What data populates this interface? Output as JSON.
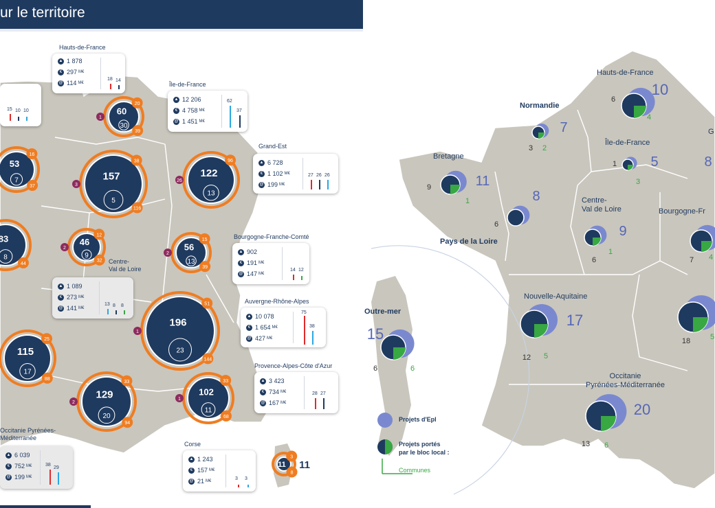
{
  "title": "ur le territoire",
  "left_map": {
    "bubbles": [
      {
        "id": "hdf",
        "total": "60",
        "inner": "30",
        "top_badge": "20",
        "left_badge": "1",
        "right_badge": "39"
      },
      {
        "id": "nor",
        "total": "53",
        "inner": "7",
        "top_badge": "16",
        "left_badge": "",
        "right_badge": "37"
      },
      {
        "id": "idf",
        "total": "157",
        "inner": "5",
        "top_badge": "38",
        "left_badge": "3",
        "right_badge": "116"
      },
      {
        "id": "ge",
        "total": "122",
        "inner": "13",
        "top_badge": "96",
        "left_badge": "26",
        "right_badge": ""
      },
      {
        "id": "pdl",
        "total": "83",
        "inner": "8",
        "top_badge": "",
        "left_badge": "",
        "right_badge": "44"
      },
      {
        "id": "cvl",
        "total": "46",
        "inner": "9",
        "top_badge": "12",
        "left_badge": "2",
        "right_badge": "32"
      },
      {
        "id": "bfc",
        "total": "56",
        "inner": "13",
        "top_badge": "15",
        "left_badge": "2",
        "right_badge": "39"
      },
      {
        "id": "ara",
        "total": "196",
        "inner": "23",
        "top_badge": "51",
        "left_badge": "1",
        "right_badge": "144"
      },
      {
        "id": "na",
        "total": "115",
        "inner": "17",
        "top_badge": "25",
        "left_badge": "",
        "right_badge": "88"
      },
      {
        "id": "occ",
        "total": "129",
        "inner": "20",
        "top_badge": "33",
        "left_badge": "2",
        "right_badge": "94"
      },
      {
        "id": "paca",
        "total": "102",
        "inner": "11",
        "top_badge": "33",
        "left_badge": "1",
        "right_badge": "68"
      },
      {
        "id": "cor",
        "total": "11",
        "inner": "",
        "top_badge": "3",
        "left_badge": "",
        "right_badge": "8"
      }
    ],
    "cards": [
      {
        "id": "card-hdf",
        "title": "Hauts-de-France",
        "v1": "1 878",
        "v2": "297",
        "v3": "114",
        "u": "M€",
        "bars": [
          "18",
          "14"
        ]
      },
      {
        "id": "card-idf",
        "title": "Île-de-France",
        "v1": "12 206",
        "v2": "4 758",
        "v3": "1 451",
        "u": "M€",
        "bars": [
          "62",
          "37"
        ]
      },
      {
        "id": "card-ge",
        "title": "Grand-Est",
        "v1": "6 728",
        "v2": "1 102",
        "v3": "199",
        "u": "M€",
        "bars": [
          "27",
          "26",
          "26"
        ]
      },
      {
        "id": "card-bfc",
        "title": "Bourgogne-Franche-Comté",
        "v1": "902",
        "v2": "191",
        "v3": "147",
        "u": "M€",
        "bars": [
          "14",
          "12"
        ]
      },
      {
        "id": "card-cvl",
        "title": "Centre-\nVal de Loire",
        "v1": "1 089",
        "v2": "273",
        "v3": "141",
        "u": "M€",
        "bars": [
          "13",
          "8",
          "8"
        ]
      },
      {
        "id": "card-ara",
        "title": "Auvergne-Rhône-Alpes",
        "v1": "10 078",
        "v2": "1 654",
        "v3": "427",
        "u": "M€",
        "bars": [
          "75",
          "38"
        ]
      },
      {
        "id": "card-paca",
        "title": "Provence-Alpes-Côte d'Azur",
        "v1": "3 423",
        "v2": "734",
        "v3": "167",
        "u": "M€",
        "bars": [
          "28",
          "27"
        ]
      },
      {
        "id": "card-occ",
        "title": "Occitanie Pyrénées-\nMéditerranée",
        "v1": "6 039",
        "v2": "752",
        "v3": "199",
        "u": "M€",
        "bars": [
          "38",
          "29"
        ]
      },
      {
        "id": "card-cor",
        "title": "Corse",
        "v1": "1 243",
        "v2": "157",
        "v3": "21",
        "u": "M€",
        "bars": [
          "3",
          "3"
        ]
      },
      {
        "id": "card-nor",
        "title": "",
        "v1": "",
        "v2": "",
        "v3": "",
        "u": "",
        "bars": [
          "15",
          "10",
          "10"
        ]
      }
    ]
  },
  "right_map": {
    "regions": [
      {
        "id": "hdf",
        "name": "Hauts-de-France",
        "epl": "10",
        "left": "6",
        "green": "4"
      },
      {
        "id": "nor",
        "name": "Normandie",
        "epl": "7",
        "left": "3",
        "green": "2"
      },
      {
        "id": "idf",
        "name": "Île-de-France",
        "epl": "5",
        "left": "1",
        "green": "3"
      },
      {
        "id": "bre",
        "name": "Bretagne",
        "epl": "11",
        "left": "9",
        "green": "1"
      },
      {
        "id": "pdl",
        "name": "Pays de la Loire",
        "epl": "8",
        "left": "6",
        "green": ""
      },
      {
        "id": "cvl",
        "name": "Centre-\nVal de Loire",
        "epl": "9",
        "left": "6",
        "green": "1"
      },
      {
        "id": "bfc",
        "name": "Bourgogne-Fr",
        "epl": "",
        "left": "7",
        "green": "4"
      },
      {
        "id": "ge",
        "name": "G",
        "epl": "8",
        "left": "",
        "green": ""
      },
      {
        "id": "na",
        "name": "Nouvelle-Aquitaine",
        "epl": "17",
        "left": "12",
        "green": "5"
      },
      {
        "id": "ara",
        "name": "",
        "epl": "",
        "left": "18",
        "green": "5"
      },
      {
        "id": "occ",
        "name": "Occitanie\nPyrénées-Méditerranée",
        "epl": "20",
        "left": "13",
        "green": "6"
      },
      {
        "id": "om",
        "name": "Outre-mer",
        "epl": "15",
        "left": "6",
        "green": "6"
      }
    ],
    "legend": {
      "epl": "Projets d'Epl",
      "bloc_line1": "Projets portés",
      "bloc_line2": "par le bloc local :",
      "communes": "Communes"
    }
  },
  "colors": {
    "navy": "#1f3a5f",
    "orange": "#ef7d22",
    "purple": "#8e2b5e",
    "green": "#38a843",
    "lilac": "#7a89cf",
    "land": "#c9c6bd",
    "sky": "#29a8e0",
    "red": "#e02a2a"
  }
}
